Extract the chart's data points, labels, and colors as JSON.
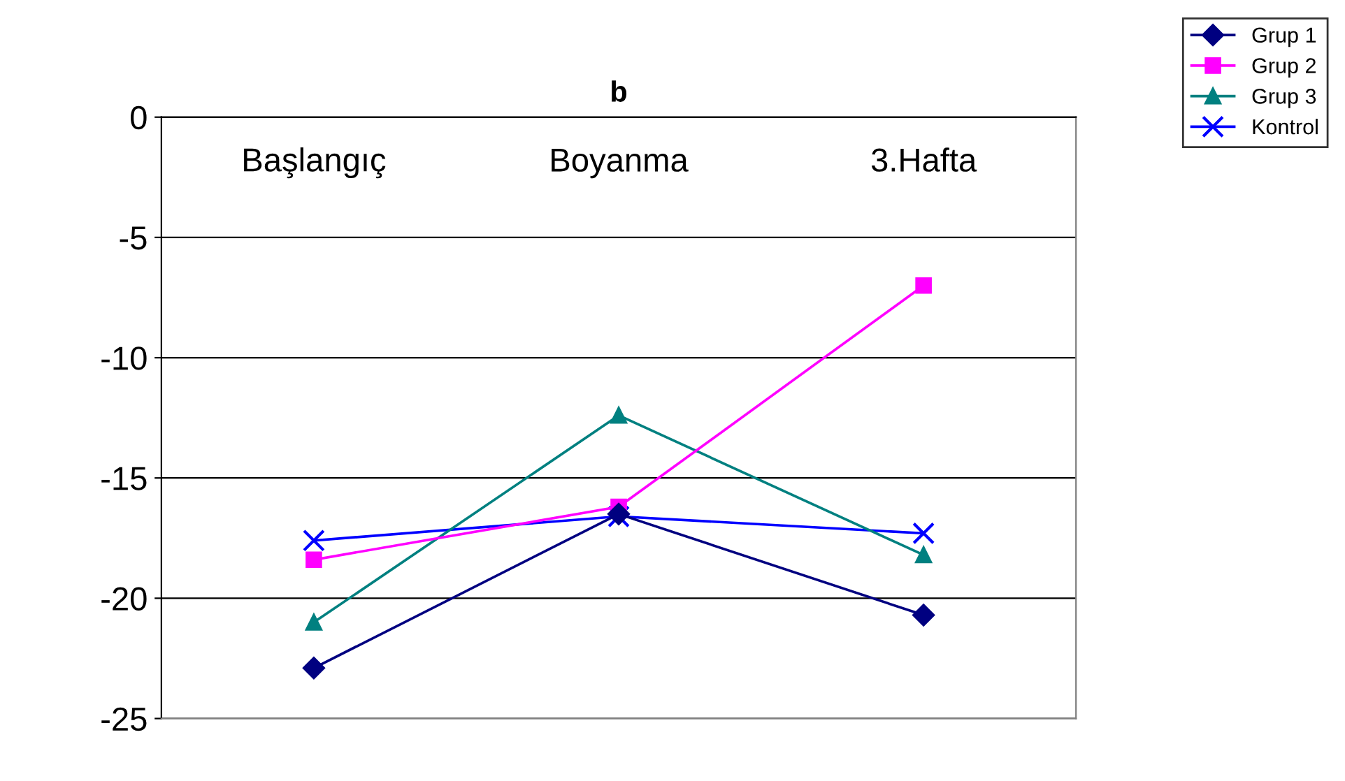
{
  "chart_data": {
    "type": "line",
    "title": "b",
    "categories": [
      "Başlangıç",
      "Boyanma",
      "3.Hafta"
    ],
    "series": [
      {
        "name": "Grup 1",
        "color": "#000080",
        "marker": "diamond",
        "values": [
          -22.9,
          -16.5,
          -20.7
        ]
      },
      {
        "name": "Grup 2",
        "color": "#ff00ff",
        "marker": "square",
        "values": [
          -18.4,
          -16.2,
          -7.0
        ]
      },
      {
        "name": "Grup 3",
        "color": "#008080",
        "marker": "triangle",
        "values": [
          -21.0,
          -12.4,
          -18.2
        ]
      },
      {
        "name": "Kontrol",
        "color": "#0000ff",
        "marker": "cross",
        "values": [
          -17.6,
          -16.6,
          -17.3
        ]
      }
    ],
    "ylim": [
      -25,
      0
    ],
    "yticks": [
      -25,
      -20,
      -15,
      -10,
      -5,
      0
    ],
    "grid": "y",
    "legend": "top right"
  }
}
